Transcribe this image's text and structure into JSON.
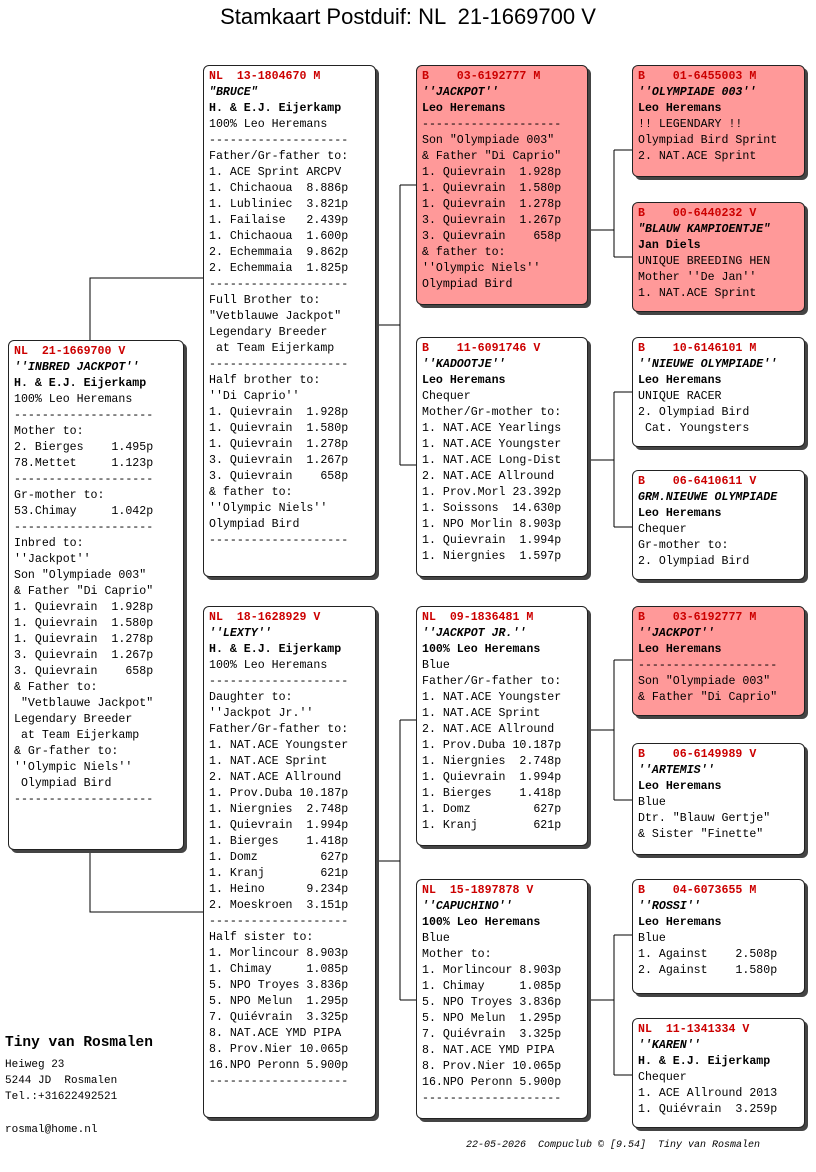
{
  "title": "Stamkaart Postduif: NL  21-1669700 V",
  "cards": [
    {
      "lines": [
        "NL  21-1669700 V",
        "''INBRED JACKPOT''",
        "H. & E.J. Eijerkamp",
        "100% Leo Heremans",
        "--------------------",
        "Mother to:",
        "2. Bierges    1.495p",
        "78.Mettet     1.123p",
        "--------------------",
        "Gr-mother to:",
        "53.Chimay     1.042p",
        "--------------------",
        "Inbred to:",
        "''Jackpot''",
        "Son \"Olympiade 003\"",
        "& Father \"Di Caprio\"",
        "1. Quievrain  1.928p",
        "1. Quievrain  1.580p",
        "1. Quievrain  1.278p",
        "3. Quievrain  1.267p",
        "3. Quievrain    658p",
        "& Father to:",
        " \"Vetblauwe Jackpot\"",
        "Legendary Breeder",
        " at Team Eijerkamp",
        "& Gr-father to:",
        "''Olympic Niels''",
        " Olympiad Bird",
        "--------------------"
      ]
    },
    {
      "lines": [
        "NL  13-1804670 M",
        "\"BRUCE\"",
        "H. & E.J. Eijerkamp",
        "100% Leo Heremans",
        "--------------------",
        "Father/Gr-father to:",
        "1. ACE Sprint ARCPV",
        "1. Chichaoua  8.886p",
        "1. Lubliniec  3.821p",
        "1. Failaise   2.439p",
        "1. Chichaoua  1.600p",
        "2. Echemmaia  9.862p",
        "2. Echemmaia  1.825p",
        "--------------------",
        "Full Brother to:",
        "\"Vetblauwe Jackpot\"",
        "Legendary Breeder",
        " at Team Eijerkamp",
        "--------------------",
        "Half brother to:",
        "''Di Caprio''",
        "1. Quievrain  1.928p",
        "1. Quievrain  1.580p",
        "1. Quievrain  1.278p",
        "3. Quievrain  1.267p",
        "3. Quievrain    658p",
        "& father to:",
        "''Olympic Niels''",
        "Olympiad Bird",
        "--------------------"
      ]
    },
    {
      "lines": [
        "NL  18-1628929 V",
        "''LEXTY''",
        "H. & E.J. Eijerkamp",
        "100% Leo Heremans",
        "--------------------",
        "Daughter to:",
        "''Jackpot Jr.''",
        "Father/Gr-father to:",
        "1. NAT.ACE Youngster",
        "1. NAT.ACE Sprint",
        "2. NAT.ACE Allround",
        "1. Prov.Duba 10.187p",
        "1. Niergnies  2.748p",
        "1. Quievrain  1.994p",
        "1. Bierges    1.418p",
        "1. Domz         627p",
        "1. Kranj        621p",
        "1. Heino      9.234p",
        "2. Moeskroen  3.151p",
        "--------------------",
        "Half sister to:",
        "1. Morlincour 8.903p",
        "1. Chimay     1.085p",
        "5. NPO Troyes 3.836p",
        "5. NPO Melun  1.295p",
        "7. Quiévrain  3.325p",
        "8. NAT.ACE YMD PIPA",
        "8. Prov.Nier 10.065p",
        "16.NPO Peronn 5.900p",
        "--------------------"
      ]
    },
    {
      "lines": [
        "B    03-6192777 M",
        "''JACKPOT''",
        "Leo Heremans",
        "--------------------",
        "Son \"Olympiade 003\"",
        "& Father \"Di Caprio\"",
        "1. Quievrain  1.928p",
        "1. Quievrain  1.580p",
        "1. Quievrain  1.278p",
        "3. Quievrain  1.267p",
        "3. Quievrain    658p",
        "& father to:",
        "''Olympic Niels''",
        "Olympiad Bird"
      ]
    },
    {
      "lines": [
        "B    11-6091746 V",
        "''KADOOTJE''",
        "Leo Heremans",
        "Chequer",
        "Mother/Gr-mother to:",
        "1. NAT.ACE Yearlings",
        "1. NAT.ACE Youngster",
        "1. NAT.ACE Long-Dist",
        "2. NAT.ACE Allround",
        "1. Prov.Morl 23.392p",
        "1. Soissons  14.630p",
        "1. NPO Morlin 8.903p",
        "1. Quievrain  1.994p",
        "1. Niergnies  1.597p"
      ]
    },
    {
      "lines": [
        "NL  09-1836481 M",
        "''JACKPOT JR.''",
        "100% Leo Heremans",
        "Blue",
        "Father/Gr-father to:",
        "1. NAT.ACE Youngster",
        "1. NAT.ACE Sprint",
        "2. NAT.ACE Allround",
        "1. Prov.Duba 10.187p",
        "1. Niergnies  2.748p",
        "1. Quievrain  1.994p",
        "1. Bierges    1.418p",
        "1. Domz         627p",
        "1. Kranj        621p"
      ]
    },
    {
      "lines": [
        "NL  15-1897878 V",
        "''CAPUCHINO''",
        "100% Leo Heremans",
        "Blue",
        "Mother to:",
        "1. Morlincour 8.903p",
        "1. Chimay     1.085p",
        "5. NPO Troyes 3.836p",
        "5. NPO Melun  1.295p",
        "7. Quiévrain  3.325p",
        "8. NAT.ACE YMD PIPA",
        "8. Prov.Nier 10.065p",
        "16.NPO Peronn 5.900p",
        "--------------------"
      ]
    },
    {
      "lines": [
        "B    01-6455003 M",
        "''OLYMPIADE 003''",
        "Leo Heremans",
        "!! LEGENDARY !!",
        "Olympiad Bird Sprint",
        "2. NAT.ACE Sprint"
      ]
    },
    {
      "lines": [
        "B    00-6440232 V",
        "\"BLAUW KAMPIOENTJE\"",
        "Jan Diels",
        "UNIQUE BREEDING HEN",
        "Mother ''De Jan''",
        "1. NAT.ACE Sprint"
      ]
    },
    {
      "lines": [
        "B    10-6146101 M",
        "''NIEUWE OLYMPIADE''",
        "Leo Heremans",
        "UNIQUE RACER",
        "2. Olympiad Bird",
        " Cat. Youngsters"
      ]
    },
    {
      "lines": [
        "B    06-6410611 V",
        "GRM.NIEUWE OLYMPIADE",
        "Leo Heremans",
        "Chequer",
        "Gr-mother to:",
        "2. Olympiad Bird"
      ]
    },
    {
      "lines": [
        "B    03-6192777 M",
        "''JACKPOT''",
        "Leo Heremans",
        "--------------------",
        "Son \"Olympiade 003\"",
        "& Father \"Di Caprio\""
      ]
    },
    {
      "lines": [
        "B    06-6149989 V",
        "''ARTEMIS''",
        "Leo Heremans",
        "Blue",
        "Dtr. \"Blauw Gertje\"",
        "& Sister \"Finette\""
      ]
    },
    {
      "lines": [
        "B    04-6073655 M",
        "''ROSSI''",
        "Leo Heremans",
        "Blue",
        "1. Against    2.508p",
        "2. Against    1.580p"
      ]
    },
    {
      "lines": [
        "NL  11-1341334 V",
        "''KAREN''",
        "H. & E.J. Eijerkamp",
        "Chequer",
        "1. ACE Allround 2013",
        "1. Quiévrain  3.259p"
      ]
    }
  ],
  "owner": {
    "name": "Tiny van Rosmalen",
    "address": [
      "Heiweg 23",
      "5244 JD  Rosmalen",
      "Tel.:+31622492521"
    ],
    "email": "rosmal@home.nl"
  },
  "footer": "22-05-2026  Compuclub © [9.54]  Tiny van Rosmalen"
}
